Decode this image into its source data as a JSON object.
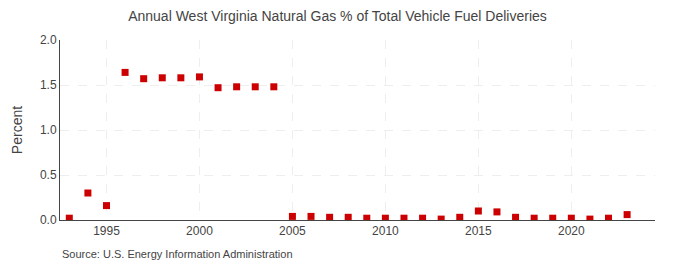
{
  "chart_data": {
    "type": "scatter",
    "title": "Annual West Virginia Natural Gas % of Total Vehicle Fuel Deliveries",
    "ylabel": "Percent",
    "annotations": [
      "Source: U.S. Energy Information Administration"
    ],
    "x": [
      1993,
      1994,
      1995,
      1996,
      1997,
      1998,
      1999,
      2000,
      2001,
      2002,
      2003,
      2004,
      2005,
      2006,
      2007,
      2008,
      2009,
      2010,
      2011,
      2012,
      2013,
      2014,
      2015,
      2016,
      2017,
      2018,
      2019,
      2020,
      2021,
      2022,
      2023
    ],
    "values": [
      0.02,
      0.3,
      0.16,
      1.64,
      1.57,
      1.58,
      1.58,
      1.59,
      1.47,
      1.48,
      1.48,
      1.48,
      0.04,
      0.04,
      0.03,
      0.03,
      0.02,
      0.02,
      0.02,
      0.02,
      0.01,
      0.03,
      0.1,
      0.09,
      0.03,
      0.02,
      0.02,
      0.02,
      0.01,
      0.02,
      0.06
    ],
    "color": "#cc0000",
    "marker": "square",
    "xlim": [
      1992.5,
      2024.5
    ],
    "xticks": [
      1995,
      2000,
      2005,
      2010,
      2015,
      2020
    ],
    "ylim": [
      0.0,
      2.0
    ],
    "yticks": [
      {
        "value": 0.0,
        "label": "0.0"
      },
      0.5,
      {
        "value": 1.0,
        "label": "1.0"
      },
      1.5,
      {
        "value": 2.0,
        "label": "2.0"
      }
    ],
    "grid": true
  }
}
